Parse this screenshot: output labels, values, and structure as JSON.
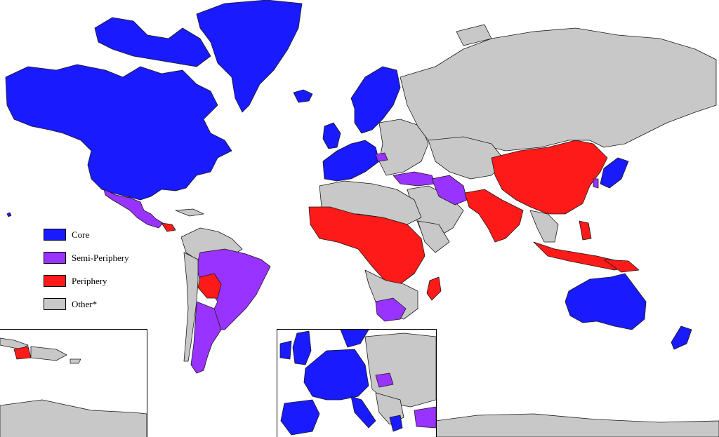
{
  "colors": {
    "core": "#1a1aff",
    "semi_periphery": "#9933ff",
    "periphery": "#ff1a1a",
    "other": "#c8c8c8",
    "ocean": "#ffffff",
    "border": "#1a1a1a"
  },
  "legend": [
    {
      "key": "core",
      "label": "Core"
    },
    {
      "key": "semi_periphery",
      "label": "Semi-Periphery"
    },
    {
      "key": "periphery",
      "label": "Periphery"
    },
    {
      "key": "other",
      "label": "Other*"
    }
  ],
  "insets": [
    "caribbean-inset",
    "europe-inset"
  ]
}
